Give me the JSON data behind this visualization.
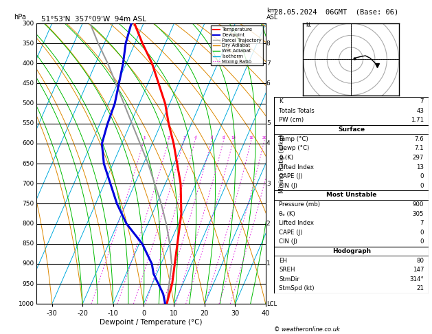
{
  "title_left": "51°53'N  357°09'W  94m ASL",
  "title_right": "28.05.2024  06GMT  (Base: 06)",
  "xlabel": "Dewpoint / Temperature (°C)",
  "pressure_levels": [
    300,
    350,
    400,
    450,
    500,
    550,
    600,
    650,
    700,
    750,
    800,
    850,
    900,
    950,
    1000
  ],
  "temp_range_min": -35,
  "temp_range_max": 40,
  "skew": 45,
  "mixing_ratio_values": [
    1,
    2,
    3,
    4,
    6,
    8,
    10,
    15,
    20,
    25
  ],
  "km_ticks": [
    8,
    7,
    6,
    5,
    4,
    3,
    2,
    1
  ],
  "km_pressures": [
    350,
    400,
    450,
    550,
    600,
    700,
    800,
    900
  ],
  "temperature_profile_p": [
    1000,
    975,
    950,
    925,
    900,
    875,
    850,
    825,
    800,
    775,
    750,
    700,
    650,
    600,
    550,
    500,
    450,
    400,
    350,
    300
  ],
  "temperature_profile_t": [
    7.6,
    7.0,
    6.5,
    5.5,
    4.5,
    3.5,
    2.5,
    1.5,
    0.5,
    -0.5,
    -2.0,
    -5.0,
    -9.0,
    -13.0,
    -17.5,
    -21.5,
    -26.5,
    -31.5,
    -37.5,
    -43.0
  ],
  "dewpoint_profile_p": [
    1000,
    975,
    950,
    925,
    900,
    875,
    850,
    825,
    800,
    750,
    700,
    650,
    600,
    550,
    500,
    450,
    400,
    350,
    300
  ],
  "dewpoint_profile_t": [
    7.1,
    5.0,
    2.0,
    -1.0,
    -3.0,
    -6.0,
    -9.0,
    -13.0,
    -17.0,
    -23.0,
    -28.0,
    -33.0,
    -36.5,
    -37.5,
    -38.0,
    -39.5,
    -41.0,
    -43.0,
    -44.0
  ],
  "parcel_profile_p": [
    1000,
    950,
    900,
    850,
    800,
    750,
    700,
    650,
    600,
    550,
    500,
    450,
    400,
    350,
    300
  ],
  "parcel_profile_t": [
    7.6,
    5.5,
    3.5,
    0.0,
    -4.0,
    -8.5,
    -13.5,
    -18.5,
    -24.0,
    -29.5,
    -35.0,
    -40.5,
    -46.0,
    -52.0,
    -57.5
  ],
  "color_temp": "#ff0000",
  "color_dewp": "#0000dd",
  "color_parcel": "#999999",
  "color_dry_adiabat": "#dd8800",
  "color_wet_adiabat": "#00bb00",
  "color_isotherm": "#00aadd",
  "color_mixing": "#dd00dd",
  "table_data": {
    "K": "7",
    "Totals Totals": "43",
    "PW (cm)": "1.71",
    "Surface_Temp": "7.6",
    "Surface_Dewp": "7.1",
    "Surface_theta": "297",
    "Surface_LiftedIndex": "13",
    "Surface_CAPE": "0",
    "Surface_CIN": "0",
    "MU_Pressure": "900",
    "MU_theta": "305",
    "MU_LiftedIndex": "7",
    "MU_CAPE": "0",
    "MU_CIN": "0",
    "EH": "80",
    "SREH": "147",
    "StmDir": "314°",
    "StmSpd": "21"
  },
  "copyright": "© weatheronline.co.uk"
}
